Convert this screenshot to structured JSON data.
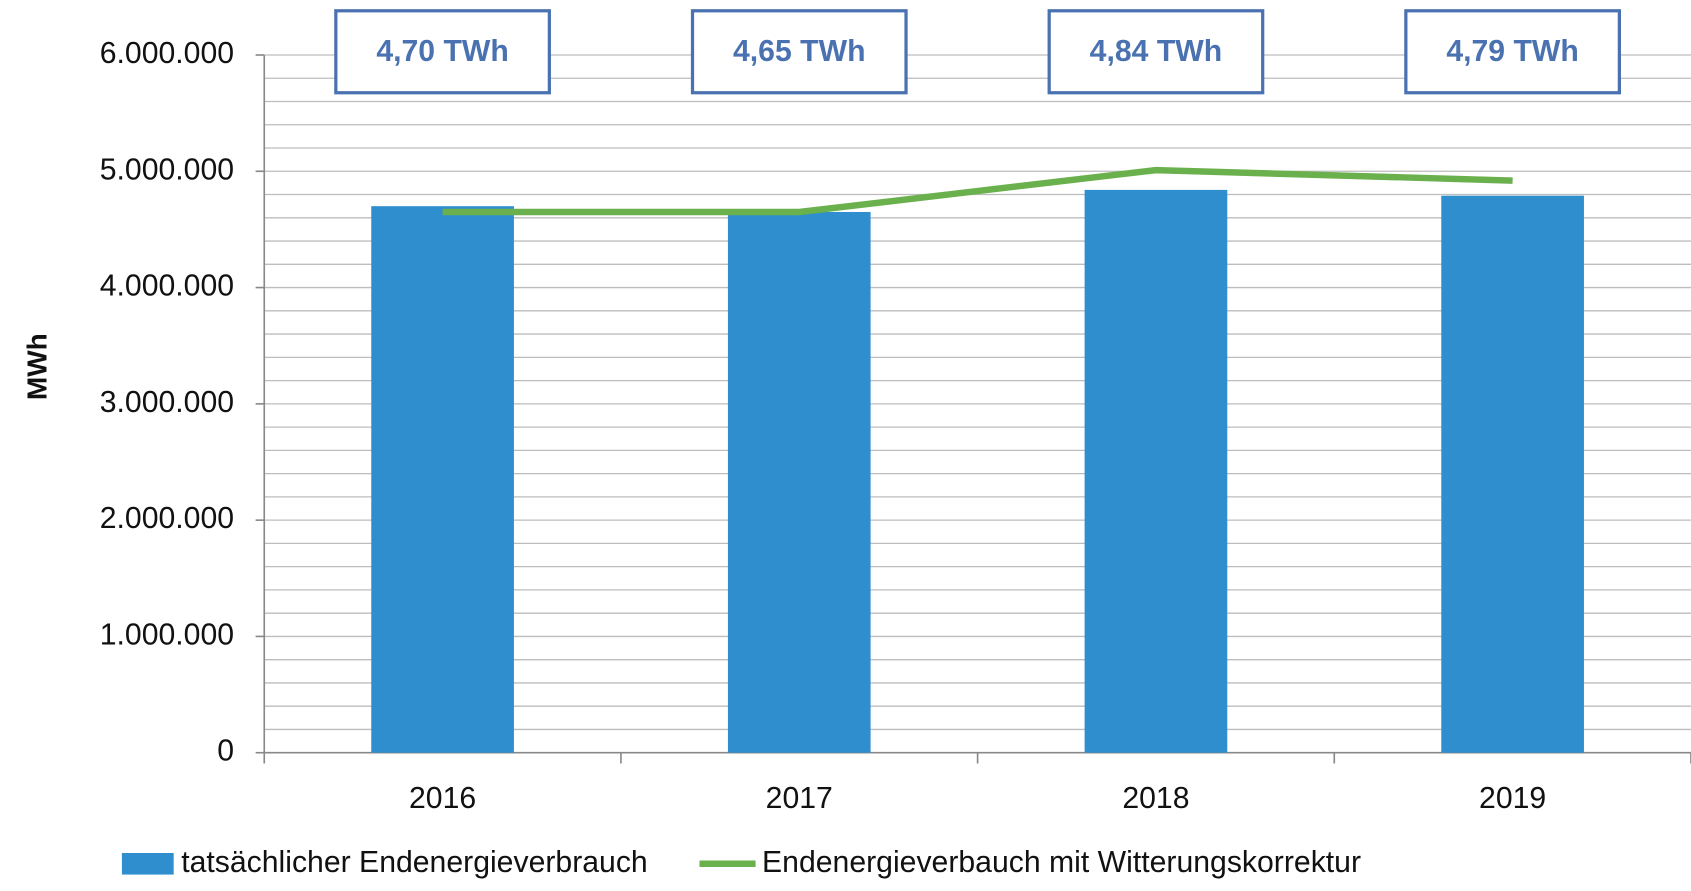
{
  "chart_data": {
    "type": "bar",
    "y_axis_label": "MWh",
    "categories": [
      "2016",
      "2017",
      "2018",
      "2019"
    ],
    "series": [
      {
        "name": "tatsächlicher Endenergieverbrauch",
        "color": "#2f8fce",
        "type": "bar",
        "values": [
          4700000,
          4650000,
          4840000,
          4790000
        ],
        "value_labels": [
          "4,70 TWh",
          "4,65 TWh",
          "4,84 TWh",
          "4,79 TWh"
        ]
      },
      {
        "name": "Endenergieverbauch mit Witterungskorrektur",
        "color": "#6ab04c",
        "type": "line",
        "values": [
          4650000,
          4650000,
          5010000,
          4920000
        ]
      }
    ],
    "ylim": [
      0,
      6000000
    ],
    "yticks": [
      0,
      {
        "value": 1000000,
        "label": "1.000.000"
      },
      {
        "value": 2000000,
        "label": "2.000.000"
      },
      {
        "value": 3000000,
        "label": "3.000.000"
      },
      {
        "value": 4000000,
        "label": "4.000.000"
      },
      {
        "value": 5000000,
        "label": "5.000.000"
      },
      {
        "value": 6000000,
        "label": "6.000.000"
      }
    ],
    "grid": true,
    "grid_minor_step": 200000,
    "legend": "bottom"
  }
}
